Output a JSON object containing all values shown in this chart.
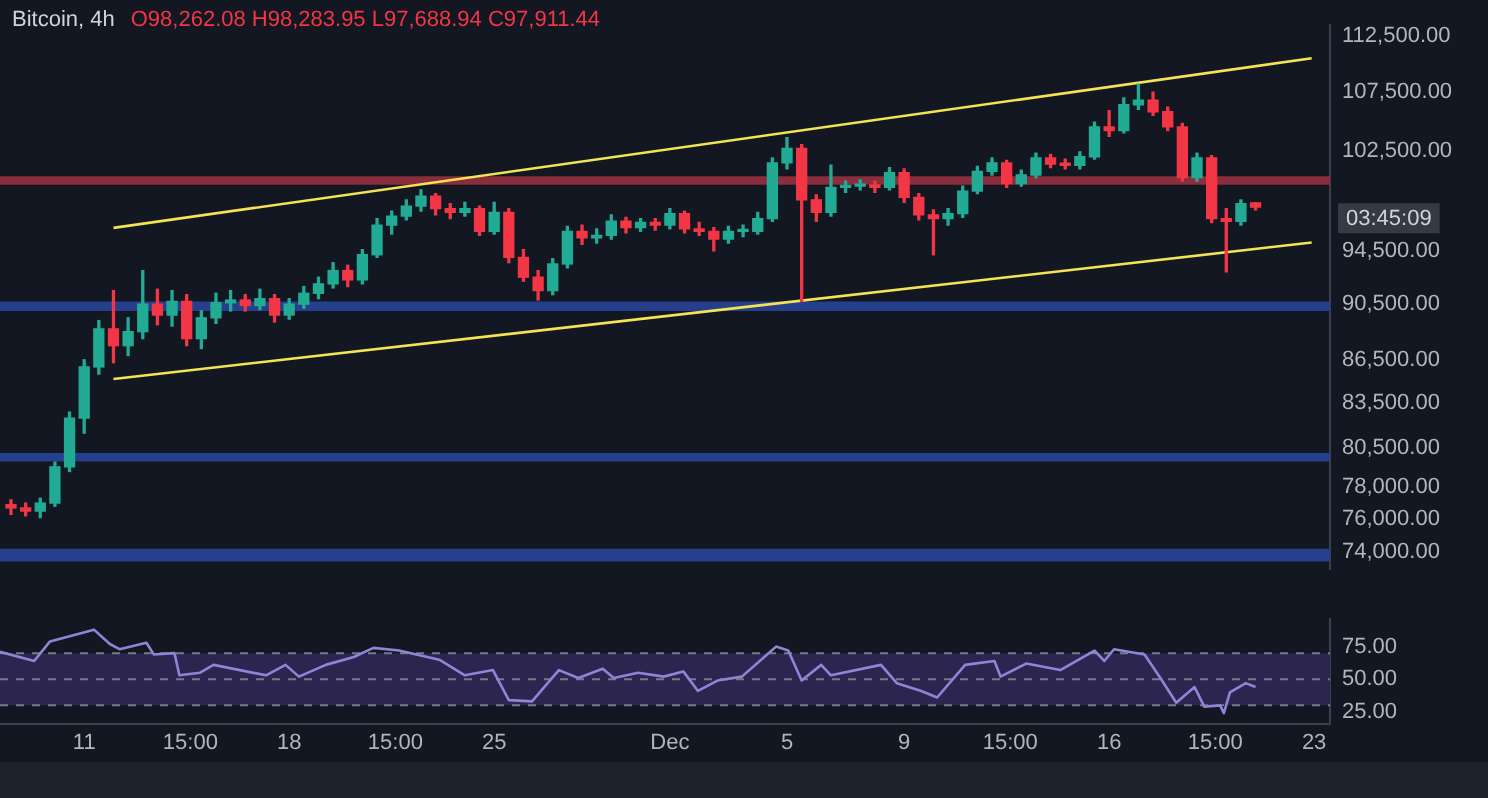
{
  "chart_data": [
    {
      "type": "candlestick",
      "title": "Bitcoin, 4h",
      "subtitle": "O98,262.08 H98,283.95 L97,688.94 C97,911.44",
      "log": "y",
      "tick_labels": "y",
      "colors": [
        "#f23645",
        "#f23645",
        "#22ab94",
        "#22ab94",
        "#22ab94",
        "#22ab94",
        "#22ab94",
        "#f23645",
        "#22ab94",
        "#22ab94",
        "#f23645",
        "#22ab94",
        "#f23645",
        "#22ab94",
        "#22ab94",
        "#22ab94",
        "#f23645",
        "#22ab94",
        "#f23645",
        "#22ab94",
        "#22ab94",
        "#22ab94",
        "#22ab94",
        "#f23645",
        "#22ab94",
        "#22ab94",
        "#22ab94",
        "#22ab94",
        "#22ab94",
        "#f23645",
        "#f23645",
        "#22ab94",
        "#f23645",
        "#22ab94",
        "#f23645",
        "#f23645",
        "#f23645",
        "#22ab94",
        "#22ab94",
        "#f23645",
        "#22ab94",
        "#22ab94",
        "#f23645",
        "#22ab94",
        "#f23645",
        "#22ab94",
        "#f23645",
        "#f23645",
        "#f23645",
        "#22ab94",
        "#22ab94",
        "#22ab94",
        "#22ab94",
        "#22ab94",
        "#f23645",
        "#f23645",
        "#22ab94",
        "#22ab94",
        "#22ab94",
        "#f23645",
        "#22ab94",
        "#f23645",
        "#f23645",
        "#f23645",
        "#22ab94",
        "#22ab94",
        "#22ab94",
        "#22ab94",
        "#f23645",
        "#22ab94",
        "#22ab94",
        "#f23645",
        "#f23645",
        "#22ab94",
        "#22ab94",
        "#f23645",
        "#22ab94",
        "#22ab94",
        "#f23645",
        "#f23645",
        "#f23645",
        "#22ab94",
        "#f23645",
        "#f23645",
        "#22ab94",
        "#f23645"
      ],
      "xlim": [
        "--11-08T03:00",
        "--12-23T13:00"
      ],
      "ylim": [
        73000,
        113500
      ],
      "yticks": [
        {
          "value": 112500,
          "label": "112,500.00"
        },
        {
          "value": 107500,
          "label": "107,500.00"
        },
        {
          "value": 102500,
          "label": "102,500.00"
        },
        {
          "value": 94500,
          "label": "94,500.00"
        },
        {
          "value": 90500,
          "label": "90,500.00"
        },
        {
          "value": 86500,
          "label": "86,500.00"
        },
        {
          "value": 83500,
          "label": "83,500.00"
        },
        {
          "value": 80500,
          "label": "80,500.00"
        },
        {
          "value": 78000,
          "label": "78,000.00"
        },
        {
          "value": 76000,
          "label": "76,000.00"
        },
        {
          "value": 74000,
          "label": "74,000.00"
        }
      ],
      "x": [
        "--11-08T12:00",
        "--11-09T00:00",
        "--11-09T12:00",
        "--11-10T00:00",
        "--11-10T12:00",
        "--11-11T00:00",
        "--11-11T12:00",
        "--11-12T00:00",
        "--11-12T12:00",
        "--11-13T00:00",
        "--11-13T12:00",
        "--11-14T00:00",
        "--11-14T12:00",
        "--11-15T00:00",
        "--11-15T12:00",
        "--11-16T00:00",
        "--11-16T12:00",
        "--11-17T00:00",
        "--11-17T12:00",
        "--11-18T00:00",
        "--11-18T12:00",
        "--11-19T00:00",
        "--11-19T12:00",
        "--11-20T00:00",
        "--11-20T12:00",
        "--11-21T00:00",
        "--11-21T12:00",
        "--11-22T00:00",
        "--11-22T12:00",
        "--11-23T00:00",
        "--11-23T12:00",
        "--11-24T00:00",
        "--11-24T12:00",
        "--11-25T00:00",
        "--11-25T12:00",
        "--11-26T00:00",
        "--11-26T12:00",
        "--11-27T00:00",
        "--11-27T12:00",
        "--11-28T00:00",
        "--11-28T12:00",
        "--11-29T00:00",
        "--11-29T12:00",
        "--11-30T00:00",
        "--11-30T12:00",
        "--12-01T00:00",
        "--12-01T12:00",
        "--12-02T00:00",
        "--12-02T12:00",
        "--12-03T00:00",
        "--12-03T12:00",
        "--12-04T00:00",
        "--12-04T12:00",
        "--12-05T00:00",
        "--12-05T12:00",
        "--12-06T00:00",
        "--12-06T12:00",
        "--12-07T00:00",
        "--12-07T12:00",
        "--12-08T00:00",
        "--12-08T12:00",
        "--12-09T00:00",
        "--12-09T12:00",
        "--12-10T00:00",
        "--12-10T12:00",
        "--12-11T00:00",
        "--12-11T12:00",
        "--12-12T00:00",
        "--12-12T12:00",
        "--12-13T00:00",
        "--12-13T12:00",
        "--12-14T00:00",
        "--12-14T12:00",
        "--12-15T00:00",
        "--12-15T12:00",
        "--12-16T00:00",
        "--12-16T12:00",
        "--12-17T00:00",
        "--12-17T12:00",
        "--12-18T00:00",
        "--12-18T12:00",
        "--12-19T00:00",
        "--12-19T12:00",
        "--12-20T00:00",
        "--12-20T12:00",
        "--12-21T00:00"
      ],
      "ohlc": [
        [
          76900,
          77200,
          76300,
          76700
        ],
        [
          76700,
          77000,
          76200,
          76500
        ],
        [
          76500,
          77300,
          76100,
          77000
        ],
        [
          77000,
          79600,
          76800,
          79300
        ],
        [
          79300,
          82900,
          79000,
          82500
        ],
        [
          82500,
          86500,
          81500,
          86000
        ],
        [
          86000,
          89300,
          85500,
          88700
        ],
        [
          88700,
          91500,
          86300,
          87500
        ],
        [
          87500,
          89500,
          86800,
          88500
        ],
        [
          88500,
          93000,
          88000,
          90500
        ],
        [
          90500,
          91600,
          89000,
          89700
        ],
        [
          89700,
          91500,
          88900,
          90700
        ],
        [
          90700,
          91200,
          87500,
          88000
        ],
        [
          88000,
          90000,
          87300,
          89500
        ],
        [
          89500,
          91300,
          89100,
          90600
        ],
        [
          90600,
          91500,
          90000,
          90800
        ],
        [
          90800,
          91200,
          90000,
          90400
        ],
        [
          90400,
          91600,
          90100,
          90900
        ],
        [
          90900,
          91200,
          89200,
          89700
        ],
        [
          89700,
          90900,
          89400,
          90500
        ],
        [
          90500,
          91800,
          90200,
          91300
        ],
        [
          91300,
          92500,
          90900,
          92000
        ],
        [
          92000,
          93600,
          91700,
          93000
        ],
        [
          93000,
          93400,
          91800,
          92300
        ],
        [
          92300,
          94600,
          92000,
          94200
        ],
        [
          94200,
          97000,
          94000,
          96500
        ],
        [
          96500,
          97600,
          95800,
          97200
        ],
        [
          97200,
          98500,
          96900,
          98000
        ],
        [
          98000,
          99300,
          97600,
          98800
        ],
        [
          98800,
          99000,
          97300,
          97800
        ],
        [
          97800,
          98200,
          97000,
          97500
        ],
        [
          97500,
          98300,
          97200,
          97800
        ],
        [
          97800,
          98000,
          95700,
          96000
        ],
        [
          96000,
          98300,
          95800,
          97500
        ],
        [
          97500,
          97800,
          93600,
          94000
        ],
        [
          94000,
          94600,
          92200,
          92500
        ],
        [
          92500,
          93000,
          90800,
          91500
        ],
        [
          91500,
          93900,
          91200,
          93500
        ],
        [
          93500,
          96400,
          93200,
          96000
        ],
        [
          96000,
          96500,
          95000,
          95500
        ],
        [
          95500,
          96200,
          95100,
          95700
        ],
        [
          95700,
          97300,
          95400,
          96800
        ],
        [
          96800,
          97100,
          95900,
          96300
        ],
        [
          96300,
          97000,
          96000,
          96700
        ],
        [
          96700,
          97000,
          96100,
          96500
        ],
        [
          96500,
          97800,
          96200,
          97400
        ],
        [
          97400,
          97600,
          95900,
          96200
        ],
        [
          96200,
          96700,
          95700,
          96000
        ],
        [
          96000,
          96300,
          94500,
          95400
        ],
        [
          95400,
          96400,
          95100,
          96000
        ],
        [
          96000,
          96500,
          95600,
          96000
        ],
        [
          96000,
          97500,
          95800,
          97000
        ],
        [
          97000,
          101900,
          96800,
          101500
        ],
        [
          101500,
          103600,
          101000,
          102700
        ],
        [
          102700,
          103000,
          90700,
          98500
        ],
        [
          98500,
          98900,
          96800,
          97500
        ],
        [
          97500,
          101300,
          97200,
          99500
        ],
        [
          99500,
          100000,
          99100,
          99600
        ],
        [
          99600,
          100100,
          99300,
          99700
        ],
        [
          99700,
          100000,
          99100,
          99500
        ],
        [
          99500,
          101100,
          99300,
          100700
        ],
        [
          100700,
          101000,
          98300,
          98700
        ],
        [
          98700,
          99000,
          96900,
          97300
        ],
        [
          97300,
          97700,
          94200,
          97000
        ],
        [
          97000,
          97800,
          96500,
          97400
        ],
        [
          97400,
          99600,
          97100,
          99200
        ],
        [
          99200,
          101200,
          99000,
          100800
        ],
        [
          100800,
          101900,
          100500,
          101500
        ],
        [
          101500,
          101700,
          99500,
          99800
        ],
        [
          99800,
          100900,
          99600,
          100500
        ],
        [
          100500,
          102300,
          100300,
          101900
        ],
        [
          101900,
          102200,
          101100,
          101400
        ],
        [
          101400,
          101800,
          101000,
          101300
        ],
        [
          101300,
          102400,
          101000,
          102000
        ],
        [
          102000,
          104900,
          101800,
          104500
        ],
        [
          104500,
          105900,
          103700,
          104200
        ],
        [
          104200,
          107000,
          104000,
          106400
        ],
        [
          106400,
          108200,
          106000,
          106800
        ],
        [
          106800,
          107500,
          105500,
          105800
        ],
        [
          105800,
          106200,
          104200,
          104500
        ],
        [
          104500,
          104800,
          100000,
          100300
        ],
        [
          100300,
          102300,
          100000,
          101900
        ],
        [
          101900,
          102100,
          96700,
          97000
        ],
        [
          97000,
          97800,
          92900,
          96800
        ],
        [
          96800,
          98500,
          96500,
          98200
        ],
        [
          98260,
          98280,
          97690,
          97910
        ]
      ],
      "series": [
        {
          "type": "line",
          "color": "#f5e356",
          "x": [
            "--11-12T00:00",
            "--12-22T22:00"
          ],
          "values": [
            96280,
            110500
          ]
        },
        {
          "type": "line",
          "color": "#f5e356",
          "x": [
            "--11-12T00:00",
            "--12-22T22:00"
          ],
          "values": [
            85160,
            95140
          ]
        }
      ],
      "bands": [
        {
          "axis": "y",
          "from": 99700,
          "to": 100400,
          "color": "#8a2d3c"
        },
        {
          "axis": "y",
          "from": 90000,
          "to": 90690,
          "color": "#263f8c"
        },
        {
          "axis": "y",
          "from": 79650,
          "to": 80200,
          "color": "#263f8c"
        },
        {
          "axis": "y",
          "from": 73440,
          "to": 74200,
          "color": "#263f8c"
        }
      ],
      "annotations": [
        "03:45:09"
      ]
    },
    {
      "type": "line",
      "xlim": [
        "--11-08T03:00",
        "--12-23T13:00"
      ],
      "ylim": [
        16,
        96
      ],
      "xticks": [
        {
          "value": "--11-11",
          "label": "11"
        },
        {
          "value": "--11-14T15:00",
          "label": "15:00"
        },
        {
          "value": "--11-18",
          "label": "18"
        },
        {
          "value": "--11-21T15:00",
          "label": "15:00"
        },
        {
          "value": "--11-25",
          "label": "25"
        },
        {
          "value": "--12-01",
          "label": "Dec"
        },
        {
          "value": "--12-05",
          "label": "5"
        },
        {
          "value": "--12-09",
          "label": "9"
        },
        {
          "value": "--12-12T15:00",
          "label": "15:00"
        },
        {
          "value": "--12-16",
          "label": "16"
        },
        {
          "value": "--12-19T15:00",
          "label": "15:00"
        },
        {
          "value": "--12-23",
          "label": "23"
        }
      ],
      "yticks": [
        {
          "value": 25,
          "label": "25.00"
        },
        {
          "value": 50,
          "label": "50.00"
        },
        {
          "value": 75,
          "label": "75.00"
        }
      ],
      "series": [
        {
          "type": "line",
          "color": "#8f84d6",
          "x": [
            "--11-08T03:00",
            "--11-09T07:00",
            "--11-09T20:00",
            "--11-11T08:00",
            "--11-11T21:00",
            "--11-12T05:00",
            "--11-13T03:00",
            "--11-13T09:00",
            "--11-14T02:00",
            "--11-14T06:00",
            "--11-14T23:00",
            "--11-15T10:00",
            "--11-17T05:00",
            "--11-17T21:00",
            "--11-18T08:00",
            "--11-19T06:00",
            "--11-20T05:00",
            "--11-20T21:00",
            "--11-21T18:00",
            "--11-23T03:00",
            "--11-24T00:00",
            "--11-24T23:00",
            "--11-25T12:00",
            "--11-26T07:00",
            "--11-27T05:00",
            "--11-27T21:00",
            "--11-28T17:00",
            "--11-29T02:00",
            "--11-29T22:00",
            "--11-30T19:00",
            "--12-01T11:00",
            "--12-01T23:00",
            "--12-02T15:00",
            "--12-03T11:00",
            "--12-04T15:00",
            "--12-05T01:00",
            "--12-05T12:00",
            "--12-06T04:00",
            "--12-06T12:00",
            "--12-08T05:00",
            "--12-08T18:00",
            "--12-09T14:00",
            "--12-10T03:00",
            "--12-11T02:00",
            "--12-12T02:00",
            "--12-12T07:00",
            "--12-13T04:00",
            "--12-14T08:00",
            "--12-15T12:00",
            "--12-15T20:00",
            "--12-16T04:00",
            "--12-17T05:00",
            "--12-17T18:00",
            "--12-18T07:00",
            "--12-18T22:00",
            "--12-19T06:00",
            "--12-19T19:00",
            "--12-19T22:00",
            "--12-20T03:00",
            "--12-20T16:00",
            "--12-21T00:00"
          ],
          "values": [
            71,
            64,
            79,
            88,
            77,
            73,
            78,
            69,
            70,
            53,
            55,
            61,
            53,
            61,
            52,
            61,
            67,
            74,
            72,
            65,
            53,
            57,
            34,
            33,
            57,
            51,
            58,
            51,
            55,
            52,
            56,
            41,
            49,
            52,
            75,
            72,
            49,
            61,
            53,
            61,
            47,
            41,
            36,
            61,
            64,
            52,
            62,
            57,
            72,
            64,
            73,
            69,
            51,
            32,
            44,
            29,
            30,
            24,
            40,
            47,
            44
          ]
        }
      ],
      "ref_lines": [
        {
          "axis": "y",
          "value": 70,
          "color": "#787b86",
          "line_style": "dashed"
        },
        {
          "axis": "y",
          "value": 50,
          "color": "#787b86",
          "line_style": "dashed"
        },
        {
          "axis": "y",
          "value": 30,
          "color": "#787b86",
          "line_style": "dashed"
        }
      ],
      "bands": [
        {
          "axis": "y",
          "from": 30,
          "to": 70,
          "color": "#2b2550"
        }
      ]
    }
  ]
}
